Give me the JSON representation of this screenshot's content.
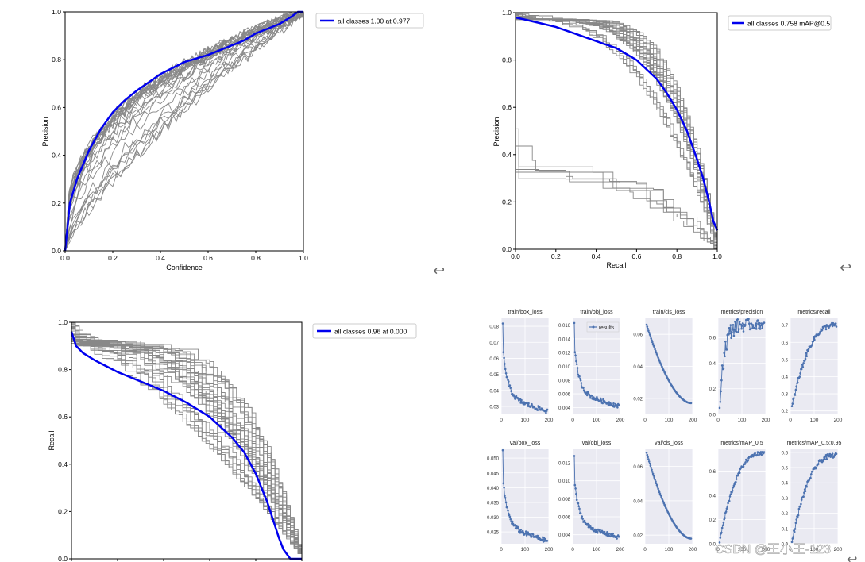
{
  "return_glyph": "↩",
  "watermark": "CSDN @王小王-123",
  "colors": {
    "mean_line": "#0000ee",
    "class_line": "#888888",
    "grid_bg": "#eaeaf2",
    "results_marker": "#4c72b0"
  },
  "chart_data": [
    {
      "id": "precision_confidence",
      "type": "line",
      "xlabel": "Confidence",
      "ylabel": "Precision",
      "xlim": [
        0,
        1
      ],
      "ylim": [
        0,
        1
      ],
      "xticks": [
        "0.0",
        "0.2",
        "0.4",
        "0.6",
        "0.8",
        "1.0"
      ],
      "yticks": [
        "0.0",
        "0.2",
        "0.4",
        "0.6",
        "0.8",
        "1.0"
      ],
      "legend": "all classes 1.00 at 0.977",
      "legend_position": "outside top-right",
      "series": [
        {
          "name": "all classes 1.00 at 0.977",
          "emphasis": true,
          "x": [
            0,
            0.02,
            0.05,
            0.1,
            0.15,
            0.2,
            0.25,
            0.3,
            0.4,
            0.5,
            0.6,
            0.7,
            0.75,
            0.8,
            0.85,
            0.9,
            0.95,
            0.977,
            1.0
          ],
          "y": [
            0.0,
            0.2,
            0.3,
            0.42,
            0.51,
            0.58,
            0.63,
            0.67,
            0.74,
            0.79,
            0.82,
            0.86,
            0.88,
            0.91,
            0.93,
            0.95,
            0.98,
            1.0,
            1.0
          ]
        }
      ],
      "class_curve_count": 30
    },
    {
      "id": "precision_recall",
      "type": "line",
      "xlabel": "Recall",
      "ylabel": "Precision",
      "xlim": [
        0,
        1
      ],
      "ylim": [
        0,
        1
      ],
      "xticks": [
        "0.0",
        "0.2",
        "0.4",
        "0.6",
        "0.8",
        "1.0"
      ],
      "yticks": [
        "0.0",
        "0.2",
        "0.4",
        "0.6",
        "0.8",
        "1.0"
      ],
      "legend": "all classes 0.758 mAP@0.5",
      "legend_position": "outside top-right",
      "series": [
        {
          "name": "all classes 0.758 mAP@0.5",
          "emphasis": true,
          "x": [
            0,
            0.05,
            0.1,
            0.2,
            0.3,
            0.4,
            0.5,
            0.6,
            0.65,
            0.7,
            0.75,
            0.8,
            0.85,
            0.9,
            0.93,
            0.96,
            0.98,
            1.0
          ],
          "y": [
            0.98,
            0.97,
            0.96,
            0.94,
            0.91,
            0.88,
            0.85,
            0.8,
            0.76,
            0.72,
            0.66,
            0.59,
            0.5,
            0.38,
            0.3,
            0.2,
            0.12,
            0.08
          ]
        }
      ],
      "class_curve_count": 30
    },
    {
      "id": "recall_confidence",
      "type": "line",
      "xlabel": "",
      "ylabel": "Recall",
      "xlim": [
        0,
        1
      ],
      "ylim": [
        0,
        1
      ],
      "xticks": [
        "",
        "",
        "",
        "",
        "",
        ""
      ],
      "yticks": [
        "0.0",
        "0.2",
        "0.4",
        "0.6",
        "0.8",
        "1.0"
      ],
      "legend": "all classes 0.96 at 0.000",
      "legend_position": "outside top-right",
      "series": [
        {
          "name": "all classes 0.96 at 0.000",
          "emphasis": true,
          "x": [
            0,
            0.02,
            0.05,
            0.1,
            0.2,
            0.3,
            0.4,
            0.5,
            0.6,
            0.7,
            0.75,
            0.8,
            0.85,
            0.88,
            0.9,
            0.92,
            0.95,
            1.0
          ],
          "y": [
            0.96,
            0.9,
            0.87,
            0.84,
            0.79,
            0.75,
            0.71,
            0.66,
            0.6,
            0.51,
            0.45,
            0.36,
            0.24,
            0.15,
            0.09,
            0.04,
            0.0,
            0.0
          ]
        }
      ],
      "class_curve_count": 30
    },
    {
      "id": "results",
      "type": "scatter",
      "legend": "results",
      "x_range": [
        0,
        200
      ],
      "panels": [
        {
          "title": "train/box_loss",
          "yticks": [
            "0.03",
            "0.04",
            "0.05",
            "0.06",
            "0.07",
            "0.08"
          ],
          "ylim": [
            0.025,
            0.085
          ],
          "start": 0.083,
          "end": 0.027,
          "decay": "loss",
          "xticks": [
            "0",
            "100",
            "200"
          ]
        },
        {
          "title": "train/obj_loss",
          "yticks": [
            "0.004",
            "0.006",
            "0.008",
            "0.010",
            "0.012",
            "0.014",
            "0.016"
          ],
          "ylim": [
            0.003,
            0.017
          ],
          "start": 0.0165,
          "end": 0.0042,
          "decay": "loss",
          "legend": true,
          "xticks": [
            "0",
            "100",
            "200"
          ]
        },
        {
          "title": "train/cls_loss",
          "yticks": [
            "0.02",
            "0.04",
            "0.06"
          ],
          "ylim": [
            0.01,
            0.07
          ],
          "start": 0.066,
          "end": 0.017,
          "decay": "smooth",
          "xticks": [
            "0",
            "100",
            "200"
          ]
        },
        {
          "title": "metrics/precision",
          "yticks": [
            "0.0",
            "0.2",
            "0.4",
            "0.6"
          ],
          "ylim": [
            0.0,
            0.75
          ],
          "start": 0.05,
          "end": 0.7,
          "decay": "rise_noisy",
          "xticks": [
            "0",
            "100",
            "200"
          ]
        },
        {
          "title": "metrics/recall",
          "yticks": [
            "0.2",
            "0.3",
            "0.4",
            "0.5",
            "0.6",
            "0.7"
          ],
          "ylim": [
            0.18,
            0.74
          ],
          "start": 0.22,
          "end": 0.7,
          "decay": "rise",
          "xticks": [
            "0",
            "100",
            "200"
          ]
        },
        {
          "title": "val/box_loss",
          "yticks": [
            "0.025",
            "0.030",
            "0.035",
            "0.040",
            "0.045",
            "0.050"
          ],
          "ylim": [
            0.021,
            0.053
          ],
          "start": 0.052,
          "end": 0.022,
          "decay": "loss",
          "xticks": [
            "0",
            "100",
            "200"
          ]
        },
        {
          "title": "val/obj_loss",
          "yticks": [
            "0.004",
            "0.006",
            "0.008",
            "0.010",
            "0.012"
          ],
          "ylim": [
            0.003,
            0.0135
          ],
          "start": 0.0128,
          "end": 0.0037,
          "decay": "loss",
          "xticks": [
            "0",
            "100",
            "200"
          ]
        },
        {
          "title": "val/cls_loss",
          "yticks": [
            "0.02",
            "0.04",
            "0.06"
          ],
          "ylim": [
            0.015,
            0.07
          ],
          "start": 0.068,
          "end": 0.018,
          "decay": "smooth",
          "xticks": [
            "0",
            "100",
            "200"
          ]
        },
        {
          "title": "metrics/mAP_0.5",
          "yticks": [
            "0.0",
            "0.2",
            "0.4",
            "0.6"
          ],
          "ylim": [
            0.0,
            0.78
          ],
          "start": 0.02,
          "end": 0.75,
          "decay": "rise",
          "xticks": [
            "0",
            "100",
            "200"
          ]
        },
        {
          "title": "metrics/mAP_0.5:0.95",
          "yticks": [
            "0.0",
            "0.1",
            "0.2",
            "0.3",
            "0.4",
            "0.5",
            "0.6"
          ],
          "ylim": [
            0.0,
            0.62
          ],
          "start": 0.01,
          "end": 0.58,
          "decay": "rise",
          "xticks": [
            "0",
            "100",
            "200"
          ]
        }
      ]
    }
  ]
}
